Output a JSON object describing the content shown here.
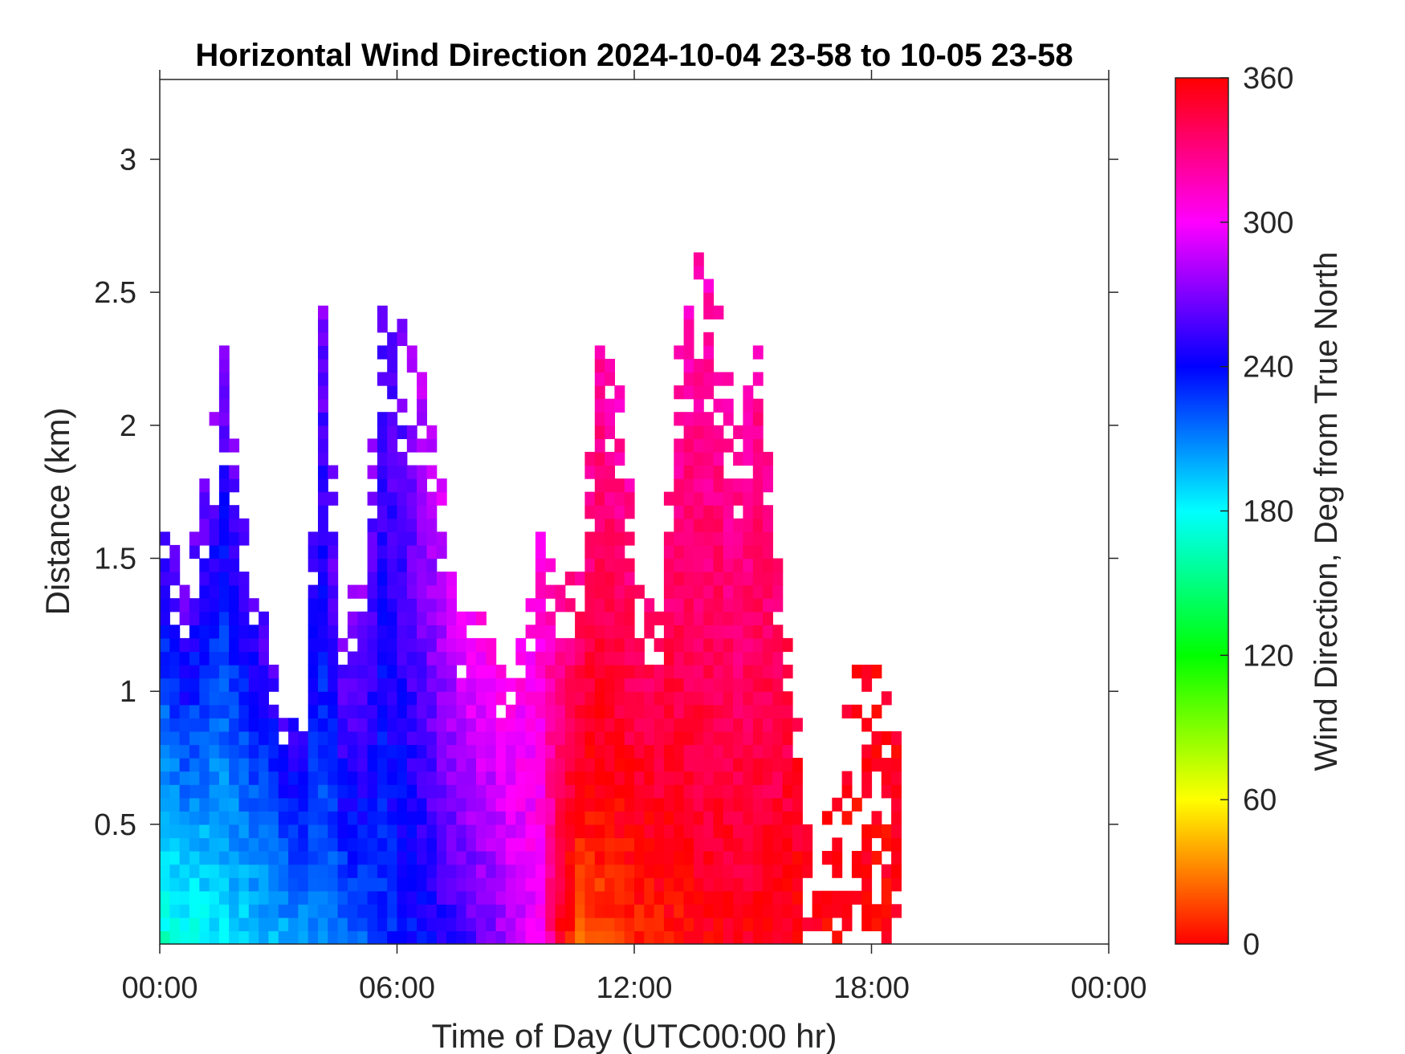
{
  "chart_data": {
    "type": "heatmap",
    "title": "Horizontal Wind Direction 2024-10-04 23-58 to 10-05 23-58",
    "xlabel": "Time of Day (UTC00:00 hr)",
    "ylabel": "Distance (km)",
    "colorbar_label": "Wind Direction, Deg from True North",
    "x_range_hours": [
      0,
      24
    ],
    "x_ticks": [
      {
        "hour": 0,
        "label": "00:00"
      },
      {
        "hour": 6,
        "label": "06:00"
      },
      {
        "hour": 12,
        "label": "12:00"
      },
      {
        "hour": 18,
        "label": "18:00"
      },
      {
        "hour": 24,
        "label": "00:00"
      }
    ],
    "y_range_km": [
      0.05,
      3.3
    ],
    "y_ticks": [
      {
        "km": 0.5,
        "label": "0.5"
      },
      {
        "km": 1,
        "label": "1"
      },
      {
        "km": 1.5,
        "label": "1.5"
      },
      {
        "km": 2,
        "label": "2"
      },
      {
        "km": 2.5,
        "label": "2.5"
      },
      {
        "km": 3,
        "label": "3"
      }
    ],
    "color_range_deg": [
      0,
      360
    ],
    "colorbar_ticks": [
      {
        "deg": 0,
        "label": "0"
      },
      {
        "deg": 60,
        "label": "60"
      },
      {
        "deg": 120,
        "label": "120"
      },
      {
        "deg": 180,
        "label": "180"
      },
      {
        "deg": 240,
        "label": "240"
      },
      {
        "deg": 300,
        "label": "300"
      },
      {
        "deg": 360,
        "label": "360"
      }
    ],
    "colormap": [
      "#ff0000",
      "#ffff00",
      "#00ff00",
      "#00ffff",
      "#0000ff",
      "#ff00ff",
      "#ff0000"
    ],
    "grid": false,
    "time_resolution_hours": 0.25,
    "range_resolution_km": 0.05,
    "profiles": [
      {
        "hour": 0.0,
        "top_km": 1.7,
        "dir_low": 170,
        "dir_high": 265
      },
      {
        "hour": 0.5,
        "top_km": 1.4,
        "dir_low": 175,
        "dir_high": 268
      },
      {
        "hour": 1.0,
        "top_km": 1.8,
        "dir_low": 180,
        "dir_high": 270
      },
      {
        "hour": 1.5,
        "top_km": 2.3,
        "dir_low": 185,
        "dir_high": 272
      },
      {
        "hour": 2.0,
        "top_km": 1.7,
        "dir_low": 190,
        "dir_high": 268
      },
      {
        "hour": 2.5,
        "top_km": 1.3,
        "dir_low": 195,
        "dir_high": 262
      },
      {
        "hour": 3.0,
        "top_km": 0.9,
        "dir_low": 200,
        "dir_high": 255
      },
      {
        "hour": 3.5,
        "top_km": 0.9,
        "dir_low": 205,
        "dir_high": 258
      },
      {
        "hour": 4.0,
        "top_km": 2.4,
        "dir_low": 210,
        "dir_high": 268
      },
      {
        "hour": 4.5,
        "top_km": 1.3,
        "dir_low": 215,
        "dir_high": 275
      },
      {
        "hour": 5.0,
        "top_km": 1.5,
        "dir_low": 220,
        "dir_high": 282
      },
      {
        "hour": 5.5,
        "top_km": 2.4,
        "dir_low": 228,
        "dir_high": 262
      },
      {
        "hour": 6.0,
        "top_km": 2.35,
        "dir_low": 235,
        "dir_high": 268
      },
      {
        "hour": 6.5,
        "top_km": 2.2,
        "dir_low": 240,
        "dir_high": 285
      },
      {
        "hour": 7.0,
        "top_km": 1.8,
        "dir_low": 248,
        "dir_high": 295
      },
      {
        "hour": 7.5,
        "top_km": 1.3,
        "dir_low": 255,
        "dir_high": 300
      },
      {
        "hour": 8.0,
        "top_km": 1.3,
        "dir_low": 265,
        "dir_high": 305
      },
      {
        "hour": 8.5,
        "top_km": 1.1,
        "dir_low": 275,
        "dir_high": 305
      },
      {
        "hour": 9.0,
        "top_km": 1.2,
        "dir_low": 290,
        "dir_high": 305
      },
      {
        "hour": 9.5,
        "top_km": 1.6,
        "dir_low": 300,
        "dir_high": 310
      },
      {
        "hour": 10.0,
        "top_km": 1.4,
        "dir_low": 355,
        "dir_high": 320
      },
      {
        "hour": 10.5,
        "top_km": 1.5,
        "dir_low": 20,
        "dir_high": 325
      },
      {
        "hour": 11.0,
        "top_km": 2.3,
        "dir_low": 15,
        "dir_high": 318
      },
      {
        "hour": 11.5,
        "top_km": 2.2,
        "dir_low": 10,
        "dir_high": 315
      },
      {
        "hour": 12.0,
        "top_km": 1.4,
        "dir_low": 8,
        "dir_high": 330
      },
      {
        "hour": 12.5,
        "top_km": 1.3,
        "dir_low": 5,
        "dir_high": 335
      },
      {
        "hour": 13.0,
        "top_km": 2.3,
        "dir_low": 2,
        "dir_high": 318
      },
      {
        "hour": 13.5,
        "top_km": 2.65,
        "dir_low": 358,
        "dir_high": 315
      },
      {
        "hour": 14.0,
        "top_km": 2.4,
        "dir_low": 356,
        "dir_high": 318
      },
      {
        "hour": 14.5,
        "top_km": 2.0,
        "dir_low": 355,
        "dir_high": 320
      },
      {
        "hour": 15.0,
        "top_km": 2.3,
        "dir_low": 355,
        "dir_high": 322
      },
      {
        "hour": 15.5,
        "top_km": 1.5,
        "dir_low": 355,
        "dir_high": 330
      },
      {
        "hour": 16.0,
        "top_km": 0.9,
        "dir_low": 357,
        "dir_high": 350
      },
      {
        "hour": 16.5,
        "top_km": 0.3,
        "dir_low": 358,
        "dir_high": 355
      },
      {
        "hour": 17.5,
        "top_km": 1.2,
        "dir_low": 358,
        "dir_high": 355
      },
      {
        "hour": 18.0,
        "top_km": 1.1,
        "dir_low": 358,
        "dir_high": 355
      },
      {
        "hour": 18.5,
        "top_km": 0.9,
        "dir_low": 358,
        "dir_high": 355
      }
    ]
  }
}
